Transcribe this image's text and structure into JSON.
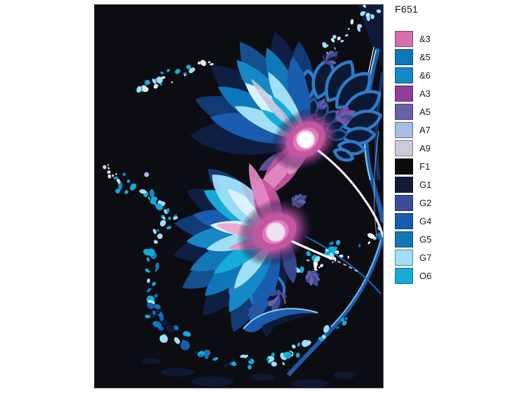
{
  "product_code": "F651",
  "artwork": {
    "background": "#0c0d12",
    "pink_accent": "#d56fae",
    "white_accent": "#ffffff"
  },
  "legend": {
    "items": [
      {
        "code": "&3",
        "color": "#d56fae"
      },
      {
        "code": "&5",
        "color": "#0e76ba"
      },
      {
        "code": "&6",
        "color": "#1688c6"
      },
      {
        "code": "A3",
        "color": "#8e3f9a"
      },
      {
        "code": "A5",
        "color": "#6a5fa9"
      },
      {
        "code": "A7",
        "color": "#a9bce2"
      },
      {
        "code": "A9",
        "color": "#cbc9da"
      },
      {
        "code": "F1",
        "color": "#0b0b0d"
      },
      {
        "code": "G1",
        "color": "#111b36"
      },
      {
        "code": "G2",
        "color": "#3b4c98"
      },
      {
        "code": "G4",
        "color": "#1a5cad"
      },
      {
        "code": "G5",
        "color": "#1177b7"
      },
      {
        "code": "G7",
        "color": "#a0dff5"
      },
      {
        "code": "O6",
        "color": "#14abd7"
      }
    ]
  }
}
